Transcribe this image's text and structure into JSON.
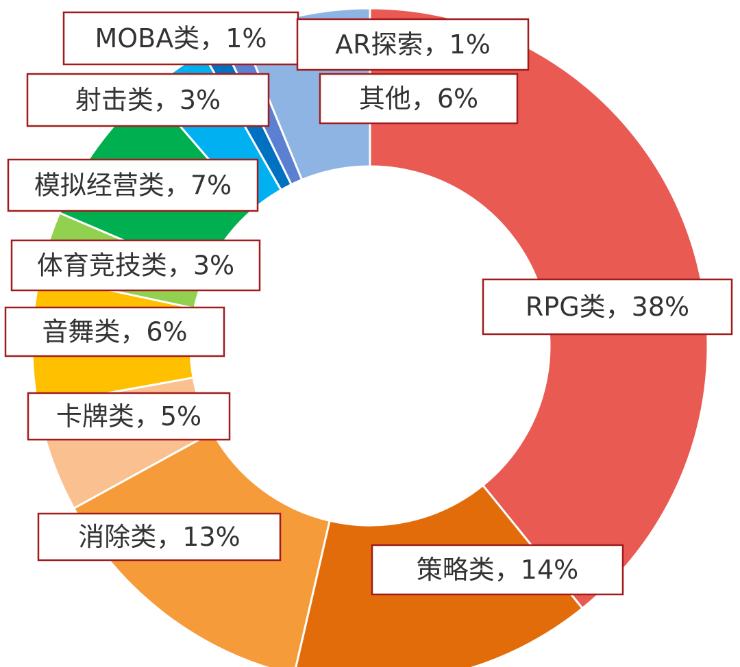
{
  "chart_data": {
    "type": "pie",
    "variant": "donut",
    "legend": "none",
    "slices": [
      {
        "label": "RPG类，38%",
        "value": 38,
        "color": "#e85a52"
      },
      {
        "label": "策略类，14%",
        "value": 14,
        "color": "#e36c0a"
      },
      {
        "label": "消除类，13%",
        "value": 13,
        "color": "#f59b3a"
      },
      {
        "label": "卡牌类，5%",
        "value": 5,
        "color": "#fac090"
      },
      {
        "label": "音舞类，6%",
        "value": 6,
        "color": "#ffc000"
      },
      {
        "label": "体育竞技类，3%",
        "value": 3,
        "color": "#92d050"
      },
      {
        "label": "模拟经营类，7%",
        "value": 7,
        "color": "#00b050"
      },
      {
        "label": "射击类，3%",
        "value": 3,
        "color": "#00b0f0"
      },
      {
        "label": "MOBA类，1%",
        "value": 1,
        "color": "#0070c0"
      },
      {
        "label": "AR探索，1%",
        "value": 1,
        "color": "#5b7fd1"
      },
      {
        "label": "其他，6%",
        "value": 6,
        "color": "#8eb4e3"
      }
    ]
  }
}
